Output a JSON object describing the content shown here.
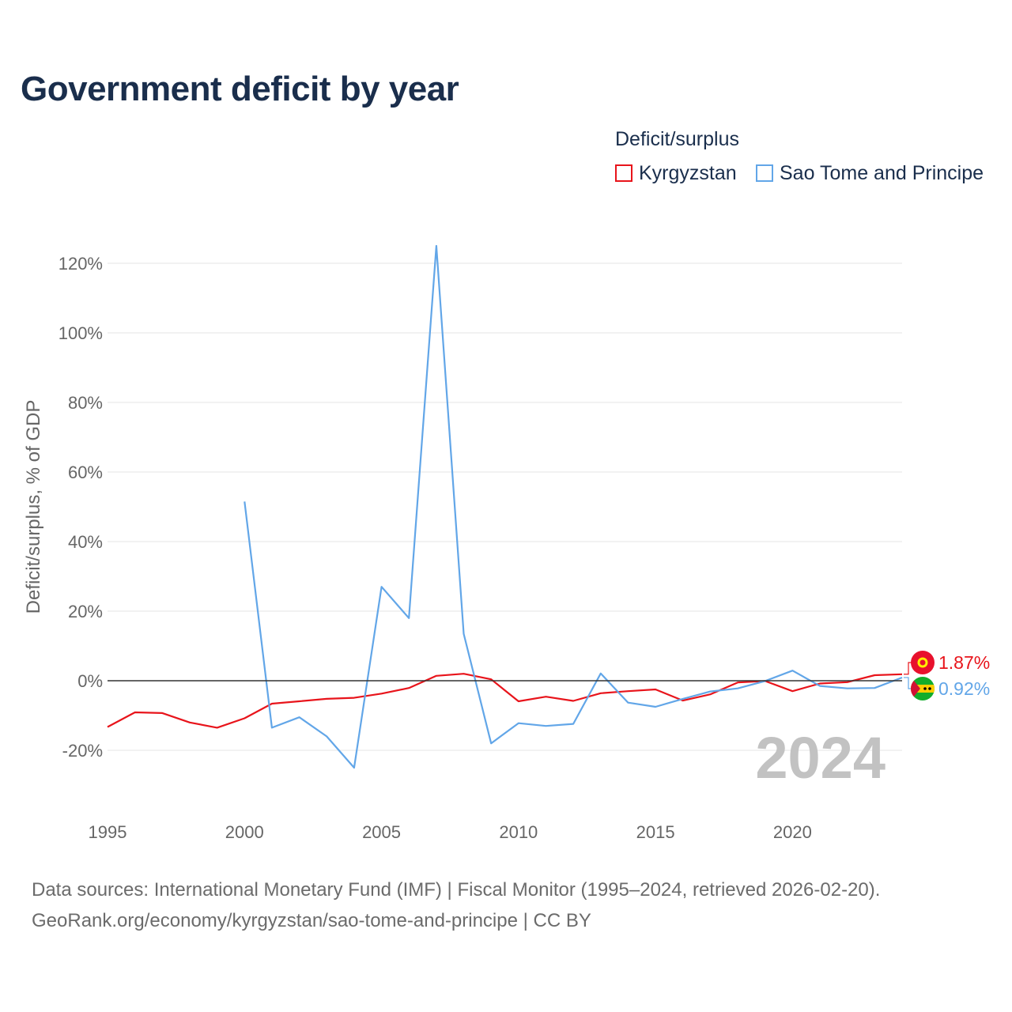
{
  "title": "Government deficit by year",
  "legend": {
    "title": "Deficit/surplus",
    "items": [
      {
        "name": "Kyrgyzstan",
        "color": "#e8141b"
      },
      {
        "name": "Sao Tome and Principe",
        "color": "#62a6e8"
      }
    ]
  },
  "source": {
    "line1": "Data sources: International Monetary Fund (IMF) | Fiscal Monitor (1995–2024, retrieved 2026-02-20).",
    "line2": "GeoRank.org/economy/kyrgyzstan/sao-tome-and-principe | CC BY"
  },
  "chart_data": {
    "type": "line",
    "title": "Government deficit by year",
    "xlabel": "",
    "ylabel": "Deficit/surplus, % of GDP",
    "xlim": [
      1995,
      2024
    ],
    "ylim": [
      -30,
      130
    ],
    "y_ticks": [
      -20,
      0,
      20,
      40,
      60,
      80,
      100,
      120
    ],
    "y_tick_labels": [
      "-20%",
      "0%",
      "20%",
      "40%",
      "60%",
      "80%",
      "100%",
      "120%"
    ],
    "x_ticks": [
      1995,
      2000,
      2005,
      2010,
      2015,
      2020
    ],
    "x_tick_labels": [
      "1995",
      "2000",
      "2005",
      "2010",
      "2015",
      "2020"
    ],
    "grid": true,
    "legend_position": "top-right",
    "current_year": "2024",
    "series": [
      {
        "name": "Kyrgyzstan",
        "color": "#e8141b",
        "end_label": "1.87%",
        "x": [
          1995,
          1996,
          1997,
          1998,
          1999,
          2000,
          2001,
          2002,
          2003,
          2004,
          2005,
          2006,
          2007,
          2008,
          2009,
          2010,
          2011,
          2012,
          2013,
          2014,
          2015,
          2016,
          2017,
          2018,
          2019,
          2020,
          2021,
          2022,
          2023,
          2024
        ],
        "values": [
          -13.3,
          -9.1,
          -9.3,
          -12.0,
          -13.5,
          -10.8,
          -6.6,
          -5.9,
          -5.2,
          -4.9,
          -3.7,
          -2.1,
          1.4,
          2.0,
          0.4,
          -5.9,
          -4.6,
          -5.8,
          -3.6,
          -3.0,
          -2.5,
          -5.7,
          -3.9,
          -0.5,
          -0.1,
          -3.0,
          -0.8,
          -0.4,
          1.6,
          1.87
        ]
      },
      {
        "name": "Sao Tome and Principe",
        "color": "#62a6e8",
        "end_label": "0.92%",
        "x": [
          2000,
          2001,
          2002,
          2003,
          2004,
          2005,
          2006,
          2007,
          2008,
          2009,
          2010,
          2011,
          2012,
          2013,
          2014,
          2015,
          2016,
          2017,
          2018,
          2019,
          2020,
          2021,
          2022,
          2023,
          2024
        ],
        "values": [
          51.5,
          -13.5,
          -10.5,
          -16.0,
          -25.0,
          27.0,
          18.0,
          125.0,
          13.5,
          -18.0,
          -12.2,
          -13.0,
          -12.4,
          2.1,
          -6.3,
          -7.5,
          -5.2,
          -3.1,
          -2.2,
          -0.1,
          2.9,
          -1.5,
          -2.2,
          -2.1,
          0.92
        ]
      }
    ]
  }
}
